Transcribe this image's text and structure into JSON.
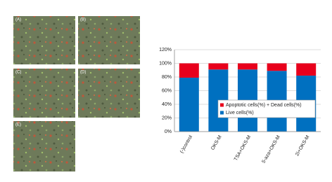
{
  "image_panels": [
    "(A)",
    "(B)",
    "(C)",
    "(D)",
    "(E)"
  ],
  "chart_data": {
    "type": "stacked_bar",
    "categories": [
      "(-)control",
      "OKS-M",
      "TSA+OKS-M",
      "5-aza+OKS-M",
      "2i+OKS-M"
    ],
    "series": [
      {
        "name": "Live cells(%)",
        "color": "#0070c0",
        "values": [
          79,
          91,
          91,
          89,
          82
        ]
      },
      {
        "name": "Apoptotic cells(%) + Dead cells(%)",
        "color": "#e8001c",
        "values": [
          21,
          9,
          9,
          11,
          18
        ]
      }
    ],
    "ylim": [
      0,
      120
    ],
    "yticks": [
      {
        "value": 0,
        "label": "0%"
      },
      {
        "value": 20,
        "label": "20%"
      },
      {
        "value": 40,
        "label": "40%"
      },
      {
        "value": 60,
        "label": "60%"
      },
      {
        "value": 80,
        "label": "80%"
      },
      {
        "value": 100,
        "label": "100%"
      },
      {
        "value": 120,
        "label": "120%"
      }
    ],
    "grid": true
  }
}
